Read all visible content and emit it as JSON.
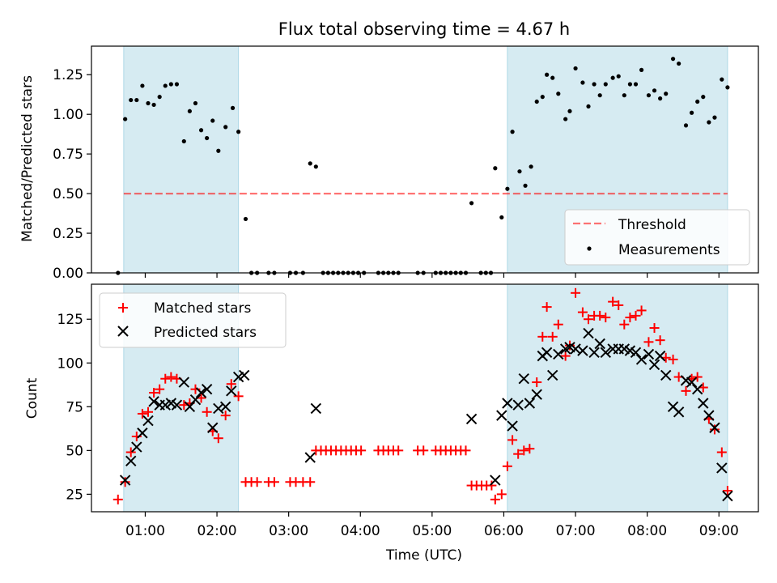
{
  "title": "Flux total observing time = 4.67 h",
  "colors": {
    "shade": "#add8e6",
    "threshold": "#ff0000",
    "matched": "#ff0000",
    "predicted": "#000000",
    "measurement": "#000000"
  },
  "chart_data": [
    {
      "type": "scatter",
      "ylabel": "Matched/Predicted stars",
      "ylim": [
        0,
        1.43
      ],
      "yticks": [
        0.0,
        0.25,
        0.5,
        0.75,
        1.0,
        1.25
      ],
      "ytick_labels": [
        "0.00",
        "0.25",
        "0.50",
        "0.75",
        "1.00",
        "1.25"
      ],
      "xlim": [
        0.25,
        9.55
      ],
      "shaded_intervals": [
        [
          0.7,
          2.3
        ],
        [
          6.05,
          9.12
        ]
      ],
      "threshold": {
        "name": "Threshold",
        "y": 0.5,
        "x": [
          0.7,
          9.12
        ],
        "style": "dashed"
      },
      "legend": {
        "position": "lower-right",
        "entries": [
          "Threshold",
          "Measurements"
        ]
      },
      "series": [
        {
          "name": "Measurements",
          "marker": "dot",
          "points": [
            [
              0.62,
              0.0
            ],
            [
              0.72,
              0.97
            ],
            [
              0.8,
              1.09
            ],
            [
              0.88,
              1.09
            ],
            [
              0.96,
              1.18
            ],
            [
              1.04,
              1.07
            ],
            [
              1.12,
              1.06
            ],
            [
              1.2,
              1.11
            ],
            [
              1.28,
              1.18
            ],
            [
              1.36,
              1.19
            ],
            [
              1.44,
              1.19
            ],
            [
              1.54,
              0.83
            ],
            [
              1.62,
              1.02
            ],
            [
              1.7,
              1.07
            ],
            [
              1.78,
              0.9
            ],
            [
              1.86,
              0.85
            ],
            [
              1.94,
              0.96
            ],
            [
              2.02,
              0.77
            ],
            [
              2.12,
              0.92
            ],
            [
              2.22,
              1.04
            ],
            [
              2.3,
              0.89
            ],
            [
              2.4,
              0.34
            ],
            [
              2.48,
              0.0
            ],
            [
              2.56,
              0.0
            ],
            [
              2.72,
              0.0
            ],
            [
              2.8,
              0.0
            ],
            [
              3.02,
              0.0
            ],
            [
              3.1,
              0.0
            ],
            [
              3.2,
              0.0
            ],
            [
              3.3,
              0.69
            ],
            [
              3.38,
              0.67
            ],
            [
              3.48,
              0.0
            ],
            [
              3.55,
              0.0
            ],
            [
              3.62,
              0.0
            ],
            [
              3.69,
              0.0
            ],
            [
              3.76,
              0.0
            ],
            [
              3.83,
              0.0
            ],
            [
              3.9,
              0.0
            ],
            [
              3.97,
              0.0
            ],
            [
              4.05,
              0.0
            ],
            [
              4.25,
              0.0
            ],
            [
              4.32,
              0.0
            ],
            [
              4.39,
              0.0
            ],
            [
              4.46,
              0.0
            ],
            [
              4.53,
              0.0
            ],
            [
              4.8,
              0.0
            ],
            [
              4.88,
              0.0
            ],
            [
              5.05,
              0.0
            ],
            [
              5.12,
              0.0
            ],
            [
              5.19,
              0.0
            ],
            [
              5.26,
              0.0
            ],
            [
              5.33,
              0.0
            ],
            [
              5.4,
              0.0
            ],
            [
              5.47,
              0.0
            ],
            [
              5.55,
              0.44
            ],
            [
              5.68,
              0.0
            ],
            [
              5.75,
              0.0
            ],
            [
              5.82,
              0.0
            ],
            [
              5.88,
              0.66
            ],
            [
              5.97,
              0.35
            ],
            [
              6.05,
              0.53
            ],
            [
              6.12,
              0.89
            ],
            [
              6.22,
              0.64
            ],
            [
              6.3,
              0.55
            ],
            [
              6.38,
              0.67
            ],
            [
              6.46,
              1.08
            ],
            [
              6.54,
              1.11
            ],
            [
              6.6,
              1.25
            ],
            [
              6.68,
              1.23
            ],
            [
              6.76,
              1.13
            ],
            [
              6.86,
              0.97
            ],
            [
              6.92,
              1.02
            ],
            [
              7.0,
              1.29
            ],
            [
              7.1,
              1.2
            ],
            [
              7.18,
              1.05
            ],
            [
              7.26,
              1.19
            ],
            [
              7.34,
              1.12
            ],
            [
              7.42,
              1.19
            ],
            [
              7.52,
              1.23
            ],
            [
              7.6,
              1.24
            ],
            [
              7.68,
              1.12
            ],
            [
              7.76,
              1.19
            ],
            [
              7.84,
              1.19
            ],
            [
              7.92,
              1.28
            ],
            [
              8.02,
              1.12
            ],
            [
              8.1,
              1.15
            ],
            [
              8.18,
              1.1
            ],
            [
              8.26,
              1.13
            ],
            [
              8.36,
              1.35
            ],
            [
              8.44,
              1.32
            ],
            [
              8.54,
              0.93
            ],
            [
              8.62,
              1.01
            ],
            [
              8.7,
              1.08
            ],
            [
              8.78,
              1.11
            ],
            [
              8.86,
              0.95
            ],
            [
              8.94,
              0.98
            ],
            [
              9.04,
              1.22
            ],
            [
              9.12,
              1.17
            ]
          ]
        }
      ]
    },
    {
      "type": "scatter",
      "xlabel": "Time (UTC)",
      "ylabel": "Count",
      "ylim": [
        15,
        145
      ],
      "yticks": [
        25,
        50,
        75,
        100,
        125
      ],
      "xlim": [
        0.25,
        9.55
      ],
      "xticks": [
        1,
        2,
        3,
        4,
        5,
        6,
        7,
        8,
        9
      ],
      "xtick_labels": [
        "01:00",
        "02:00",
        "03:00",
        "04:00",
        "05:00",
        "06:00",
        "07:00",
        "08:00",
        "09:00"
      ],
      "shaded_intervals": [
        [
          0.7,
          2.3
        ],
        [
          6.05,
          9.12
        ]
      ],
      "legend": {
        "position": "top-left",
        "entries": [
          "Matched stars",
          "Predicted stars"
        ]
      },
      "series": [
        {
          "name": "Matched stars",
          "marker": "plus",
          "points": [
            [
              0.62,
              22
            ],
            [
              0.72,
              32
            ],
            [
              0.8,
              49
            ],
            [
              0.88,
              58
            ],
            [
              0.96,
              71
            ],
            [
              1.04,
              72
            ],
            [
              1.12,
              83
            ],
            [
              1.2,
              85
            ],
            [
              1.28,
              91
            ],
            [
              1.36,
              92
            ],
            [
              1.44,
              91
            ],
            [
              1.54,
              76
            ],
            [
              1.62,
              77
            ],
            [
              1.7,
              85
            ],
            [
              1.78,
              80
            ],
            [
              1.86,
              72
            ],
            [
              1.94,
              61
            ],
            [
              2.02,
              57
            ],
            [
              2.12,
              70
            ],
            [
              2.2,
              88
            ],
            [
              2.3,
              81
            ],
            [
              2.4,
              32
            ],
            [
              2.48,
              32
            ],
            [
              2.56,
              32
            ],
            [
              2.72,
              32
            ],
            [
              2.8,
              32
            ],
            [
              3.02,
              32
            ],
            [
              3.1,
              32
            ],
            [
              3.2,
              32
            ],
            [
              3.3,
              32
            ],
            [
              3.38,
              50
            ],
            [
              3.45,
              50
            ],
            [
              3.52,
              50
            ],
            [
              3.59,
              50
            ],
            [
              3.66,
              50
            ],
            [
              3.73,
              50
            ],
            [
              3.8,
              50
            ],
            [
              3.87,
              50
            ],
            [
              3.94,
              50
            ],
            [
              4.01,
              50
            ],
            [
              4.25,
              50
            ],
            [
              4.32,
              50
            ],
            [
              4.39,
              50
            ],
            [
              4.46,
              50
            ],
            [
              4.53,
              50
            ],
            [
              4.8,
              50
            ],
            [
              4.88,
              50
            ],
            [
              5.05,
              50
            ],
            [
              5.12,
              50
            ],
            [
              5.19,
              50
            ],
            [
              5.26,
              50
            ],
            [
              5.33,
              50
            ],
            [
              5.4,
              50
            ],
            [
              5.47,
              50
            ],
            [
              5.55,
              30
            ],
            [
              5.62,
              30
            ],
            [
              5.69,
              30
            ],
            [
              5.76,
              30
            ],
            [
              5.83,
              30
            ],
            [
              5.88,
              22
            ],
            [
              5.97,
              25
            ],
            [
              6.05,
              41
            ],
            [
              6.12,
              56
            ],
            [
              6.2,
              48
            ],
            [
              6.28,
              50
            ],
            [
              6.36,
              51
            ],
            [
              6.46,
              89
            ],
            [
              6.54,
              115
            ],
            [
              6.6,
              132
            ],
            [
              6.68,
              115
            ],
            [
              6.76,
              122
            ],
            [
              6.86,
              104
            ],
            [
              6.92,
              110
            ],
            [
              7.0,
              140
            ],
            [
              7.1,
              129
            ],
            [
              7.18,
              125
            ],
            [
              7.26,
              127
            ],
            [
              7.34,
              127
            ],
            [
              7.42,
              126
            ],
            [
              7.52,
              135
            ],
            [
              7.6,
              133
            ],
            [
              7.68,
              122
            ],
            [
              7.76,
              126
            ],
            [
              7.84,
              127
            ],
            [
              7.92,
              130
            ],
            [
              8.02,
              112
            ],
            [
              8.1,
              120
            ],
            [
              8.18,
              113
            ],
            [
              8.26,
              103
            ],
            [
              8.36,
              102
            ],
            [
              8.44,
              92
            ],
            [
              8.54,
              84
            ],
            [
              8.62,
              91
            ],
            [
              8.7,
              92
            ],
            [
              8.78,
              86
            ],
            [
              8.86,
              68
            ],
            [
              8.94,
              62
            ],
            [
              9.04,
              49
            ],
            [
              9.12,
              27
            ]
          ]
        },
        {
          "name": "Predicted stars",
          "marker": "x",
          "points": [
            [
              0.72,
              33
            ],
            [
              0.8,
              44
            ],
            [
              0.88,
              52
            ],
            [
              0.96,
              60
            ],
            [
              1.04,
              67
            ],
            [
              1.12,
              78
            ],
            [
              1.2,
              76
            ],
            [
              1.28,
              76
            ],
            [
              1.36,
              77
            ],
            [
              1.44,
              76
            ],
            [
              1.54,
              89
            ],
            [
              1.62,
              75
            ],
            [
              1.7,
              79
            ],
            [
              1.78,
              83
            ],
            [
              1.86,
              85
            ],
            [
              1.94,
              63
            ],
            [
              2.02,
              74
            ],
            [
              2.12,
              75
            ],
            [
              2.2,
              84
            ],
            [
              2.3,
              92
            ],
            [
              2.38,
              93
            ],
            [
              3.3,
              46
            ],
            [
              3.38,
              74
            ],
            [
              5.55,
              68
            ],
            [
              5.88,
              33
            ],
            [
              5.97,
              70
            ],
            [
              6.05,
              77
            ],
            [
              6.12,
              64
            ],
            [
              6.2,
              76
            ],
            [
              6.28,
              91
            ],
            [
              6.36,
              77
            ],
            [
              6.46,
              82
            ],
            [
              6.54,
              104
            ],
            [
              6.6,
              106
            ],
            [
              6.68,
              93
            ],
            [
              6.76,
              105
            ],
            [
              6.86,
              108
            ],
            [
              6.92,
              109
            ],
            [
              7.0,
              108
            ],
            [
              7.1,
              107
            ],
            [
              7.18,
              117
            ],
            [
              7.26,
              106
            ],
            [
              7.34,
              111
            ],
            [
              7.42,
              106
            ],
            [
              7.52,
              108
            ],
            [
              7.6,
              108
            ],
            [
              7.68,
              108
            ],
            [
              7.76,
              107
            ],
            [
              7.84,
              106
            ],
            [
              7.92,
              102
            ],
            [
              8.02,
              105
            ],
            [
              8.1,
              99
            ],
            [
              8.18,
              104
            ],
            [
              8.26,
              93
            ],
            [
              8.36,
              75
            ],
            [
              8.44,
              72
            ],
            [
              8.54,
              90
            ],
            [
              8.62,
              89
            ],
            [
              8.7,
              85
            ],
            [
              8.78,
              77
            ],
            [
              8.86,
              70
            ],
            [
              8.94,
              63
            ],
            [
              9.04,
              40
            ],
            [
              9.12,
              24
            ]
          ]
        }
      ]
    }
  ]
}
